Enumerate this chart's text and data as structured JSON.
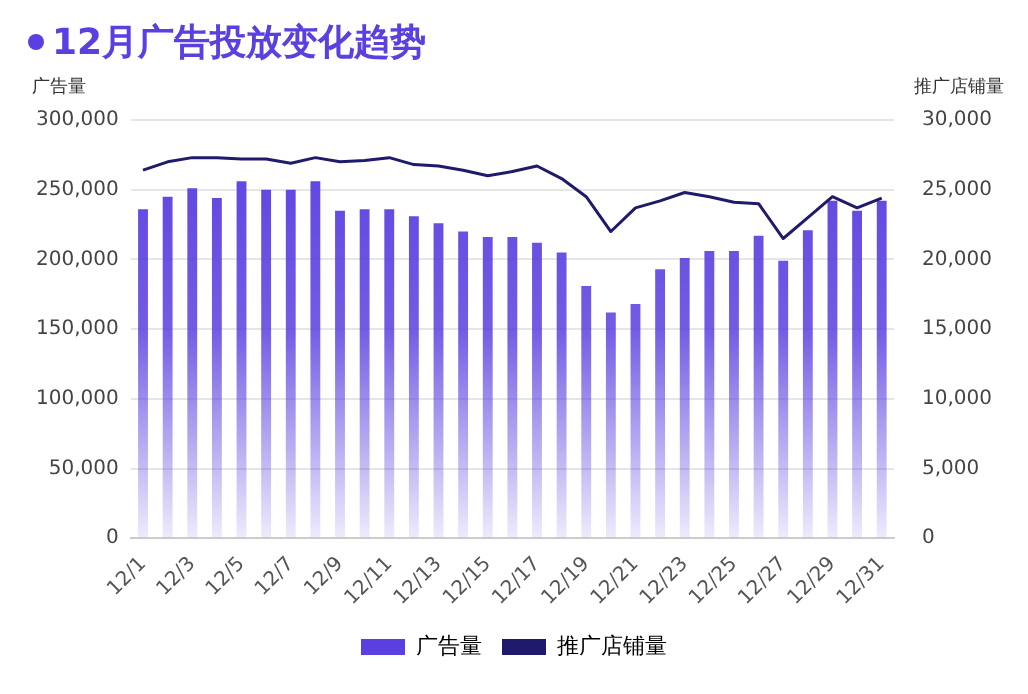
{
  "chart_data": {
    "type": "bar",
    "title": "12月广告投放变化趋势",
    "ylabel": "广告量",
    "y2label": "推广店铺量",
    "categories": [
      "12/1",
      null,
      "12/3",
      null,
      "12/5",
      null,
      "12/7",
      null,
      "12/9",
      null,
      "12/11",
      null,
      "12/13",
      null,
      "12/15",
      null,
      "12/17",
      null,
      "12/19",
      null,
      "12/21",
      null,
      "12/23",
      null,
      "12/25",
      null,
      "12/27",
      null,
      "12/29",
      null,
      "12/31"
    ],
    "series": [
      {
        "name": "广告量",
        "color": "#5b3fe0",
        "values": [
          236000,
          245000,
          251000,
          244000,
          256000,
          250000,
          250000,
          256000,
          235000,
          236000,
          236000,
          231000,
          226000,
          220000,
          216000,
          216000,
          212000,
          205000,
          181000,
          162000,
          168000,
          193000,
          201000,
          206000,
          206000,
          217000,
          199000,
          221000,
          242000,
          235000,
          242000
        ]
      },
      {
        "name": "推广店铺量",
        "type": "line",
        "axis": "y2",
        "color": "#1f1a6b",
        "values": [
          26400,
          27000,
          27300,
          27300,
          27200,
          27200,
          26900,
          27300,
          27000,
          27100,
          27300,
          26800,
          26700,
          26400,
          26000,
          26300,
          26700,
          25800,
          24500,
          22000,
          23700,
          24200,
          24800,
          24500,
          24100,
          24000,
          21500,
          23000,
          24500,
          23700,
          24400
        ]
      }
    ],
    "ylim": [
      0,
      300000
    ],
    "yticks": [
      0,
      {
        "value": 50000,
        "label": "50,000"
      },
      {
        "value": 100000,
        "label": "100,000"
      },
      {
        "value": 150000,
        "label": "150,000"
      },
      {
        "value": 200000,
        "label": "200,000"
      },
      {
        "value": 250000,
        "label": "250,000"
      },
      {
        "value": 300000,
        "label": "300,000"
      }
    ],
    "y2lim": [
      0,
      30000
    ],
    "y2ticks": [
      0,
      {
        "value": 5000,
        "label": "5,000"
      },
      {
        "value": 10000,
        "label": "10,000"
      },
      {
        "value": 15000,
        "label": "15,000"
      },
      {
        "value": 20000,
        "label": "20,000"
      },
      {
        "value": 25000,
        "label": "25,000"
      },
      {
        "value": 30000,
        "label": "30,000"
      }
    ],
    "grid": "y",
    "legend": "bottom",
    "marker": "none"
  }
}
